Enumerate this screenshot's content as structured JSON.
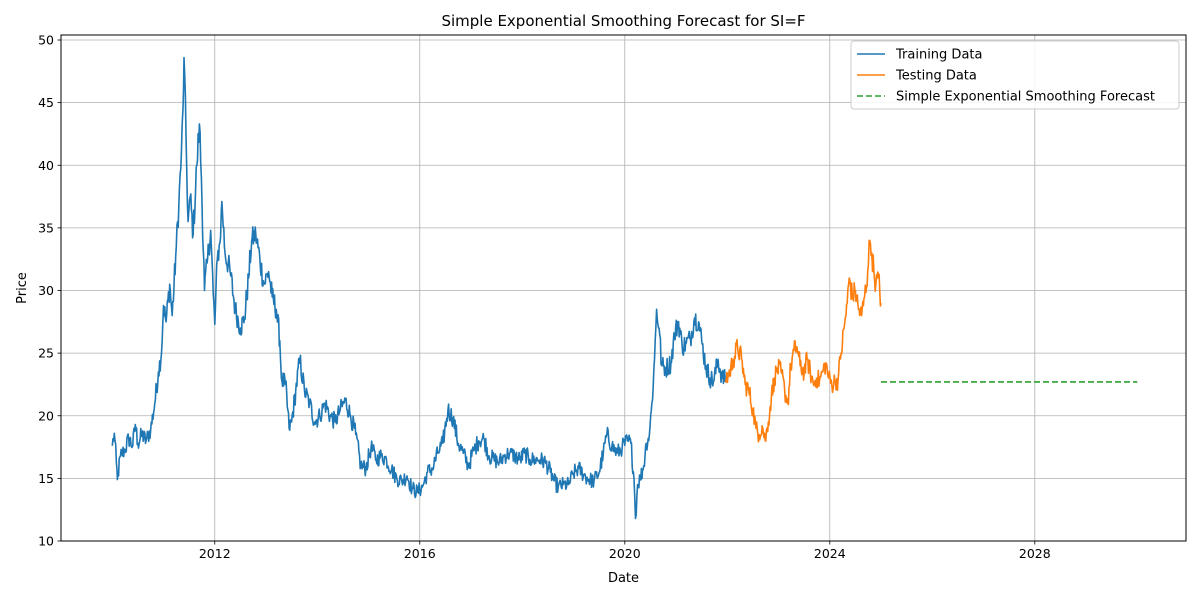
{
  "chart_data": {
    "type": "line",
    "title": "Simple Exponential Smoothing Forecast for SI=F",
    "xlabel": "Date",
    "ylabel": "Price",
    "xlim": [
      2009.0,
      2030.95
    ],
    "ylim": [
      10.0,
      50.4
    ],
    "x_ticks": [
      2012,
      2016,
      2020,
      2024,
      2028
    ],
    "x_tick_labels": [
      "2012",
      "2016",
      "2020",
      "2024",
      "2028"
    ],
    "y_ticks": [
      10,
      15,
      20,
      25,
      30,
      35,
      40,
      45,
      50
    ],
    "y_tick_labels": [
      "10",
      "15",
      "20",
      "25",
      "30",
      "35",
      "40",
      "45",
      "50"
    ],
    "grid": true,
    "legend_position": "top-right",
    "colors": {
      "training": "#1f77b4",
      "testing": "#ff7f0e",
      "forecast": "#2ca02c"
    },
    "series": [
      {
        "name": "Training Data",
        "style": "solid",
        "points": [
          [
            2010.0,
            17.6
          ],
          [
            2010.04,
            18.6
          ],
          [
            2010.08,
            16.2
          ],
          [
            2010.1,
            14.9
          ],
          [
            2010.16,
            16.8
          ],
          [
            2010.25,
            17.3
          ],
          [
            2010.32,
            18.2
          ],
          [
            2010.4,
            17.6
          ],
          [
            2010.45,
            19.3
          ],
          [
            2010.5,
            17.8
          ],
          [
            2010.58,
            18.5
          ],
          [
            2010.66,
            18.0
          ],
          [
            2010.75,
            18.9
          ],
          [
            2010.83,
            21.0
          ],
          [
            2010.9,
            23.5
          ],
          [
            2010.96,
            25.0
          ],
          [
            2011.0,
            28.8
          ],
          [
            2011.05,
            27.5
          ],
          [
            2011.12,
            30.5
          ],
          [
            2011.17,
            28.0
          ],
          [
            2011.25,
            33.5
          ],
          [
            2011.3,
            37.0
          ],
          [
            2011.35,
            41.0
          ],
          [
            2011.38,
            44.5
          ],
          [
            2011.4,
            48.6
          ],
          [
            2011.44,
            42.0
          ],
          [
            2011.48,
            35.5
          ],
          [
            2011.52,
            37.5
          ],
          [
            2011.58,
            34.5
          ],
          [
            2011.65,
            40.0
          ],
          [
            2011.7,
            43.3
          ],
          [
            2011.74,
            39.0
          ],
          [
            2011.8,
            30.0
          ],
          [
            2011.86,
            32.5
          ],
          [
            2011.92,
            34.8
          ],
          [
            2011.97,
            29.8
          ],
          [
            2012.0,
            27.3
          ],
          [
            2012.05,
            32.5
          ],
          [
            2012.1,
            33.8
          ],
          [
            2012.14,
            37.1
          ],
          [
            2012.2,
            33.0
          ],
          [
            2012.3,
            31.5
          ],
          [
            2012.4,
            28.5
          ],
          [
            2012.5,
            27.0
          ],
          [
            2012.58,
            27.8
          ],
          [
            2012.66,
            31.0
          ],
          [
            2012.72,
            34.0
          ],
          [
            2012.8,
            34.5
          ],
          [
            2012.88,
            32.5
          ],
          [
            2012.96,
            30.5
          ],
          [
            2013.05,
            31.5
          ],
          [
            2013.12,
            29.5
          ],
          [
            2013.2,
            28.5
          ],
          [
            2013.27,
            26.0
          ],
          [
            2013.3,
            23.0
          ],
          [
            2013.38,
            22.5
          ],
          [
            2013.45,
            19.0
          ],
          [
            2013.5,
            19.5
          ],
          [
            2013.58,
            22.0
          ],
          [
            2013.66,
            24.5
          ],
          [
            2013.75,
            22.0
          ],
          [
            2013.85,
            21.0
          ],
          [
            2013.95,
            19.5
          ],
          [
            2014.05,
            20.0
          ],
          [
            2014.15,
            21.0
          ],
          [
            2014.25,
            20.0
          ],
          [
            2014.35,
            19.5
          ],
          [
            2014.45,
            20.5
          ],
          [
            2014.55,
            21.2
          ],
          [
            2014.65,
            20.0
          ],
          [
            2014.75,
            18.5
          ],
          [
            2014.85,
            16.0
          ],
          [
            2014.95,
            15.8
          ],
          [
            2015.05,
            17.5
          ],
          [
            2015.15,
            16.5
          ],
          [
            2015.25,
            16.8
          ],
          [
            2015.35,
            16.5
          ],
          [
            2015.45,
            15.7
          ],
          [
            2015.55,
            15.0
          ],
          [
            2015.65,
            14.8
          ],
          [
            2015.75,
            15.2
          ],
          [
            2015.85,
            14.2
          ],
          [
            2015.95,
            13.9
          ],
          [
            2016.05,
            14.3
          ],
          [
            2016.15,
            15.5
          ],
          [
            2016.25,
            15.8
          ],
          [
            2016.35,
            17.0
          ],
          [
            2016.45,
            17.8
          ],
          [
            2016.55,
            20.5
          ],
          [
            2016.65,
            19.8
          ],
          [
            2016.75,
            17.8
          ],
          [
            2016.85,
            17.0
          ],
          [
            2016.95,
            16.0
          ],
          [
            2017.05,
            17.2
          ],
          [
            2017.15,
            18.0
          ],
          [
            2017.25,
            18.2
          ],
          [
            2017.35,
            16.8
          ],
          [
            2017.45,
            16.5
          ],
          [
            2017.55,
            16.3
          ],
          [
            2017.65,
            16.8
          ],
          [
            2017.75,
            17.0
          ],
          [
            2017.85,
            16.8
          ],
          [
            2017.95,
            16.5
          ],
          [
            2018.05,
            17.0
          ],
          [
            2018.15,
            16.5
          ],
          [
            2018.25,
            16.5
          ],
          [
            2018.35,
            16.5
          ],
          [
            2018.45,
            16.3
          ],
          [
            2018.55,
            15.5
          ],
          [
            2018.62,
            14.8
          ],
          [
            2018.7,
            14.3
          ],
          [
            2018.8,
            14.5
          ],
          [
            2018.9,
            14.5
          ],
          [
            2019.0,
            15.4
          ],
          [
            2019.1,
            15.8
          ],
          [
            2019.2,
            15.3
          ],
          [
            2019.3,
            14.9
          ],
          [
            2019.4,
            14.8
          ],
          [
            2019.5,
            15.5
          ],
          [
            2019.58,
            17.0
          ],
          [
            2019.65,
            18.5
          ],
          [
            2019.75,
            17.6
          ],
          [
            2019.85,
            17.0
          ],
          [
            2019.95,
            17.5
          ],
          [
            2020.05,
            18.0
          ],
          [
            2020.12,
            17.8
          ],
          [
            2020.18,
            15.0
          ],
          [
            2020.21,
            11.8
          ],
          [
            2020.25,
            14.5
          ],
          [
            2020.3,
            15.0
          ],
          [
            2020.37,
            16.0
          ],
          [
            2020.42,
            17.8
          ],
          [
            2020.48,
            18.5
          ],
          [
            2020.53,
            21.0
          ],
          [
            2020.58,
            24.5
          ],
          [
            2020.62,
            28.5
          ],
          [
            2020.67,
            27.0
          ],
          [
            2020.72,
            24.0
          ],
          [
            2020.8,
            23.8
          ],
          [
            2020.9,
            24.2
          ],
          [
            2020.97,
            26.5
          ],
          [
            2021.05,
            27.5
          ],
          [
            2021.12,
            25.5
          ],
          [
            2021.2,
            25.8
          ],
          [
            2021.28,
            26.2
          ],
          [
            2021.36,
            27.8
          ],
          [
            2021.44,
            27.5
          ],
          [
            2021.5,
            26.0
          ],
          [
            2021.58,
            24.0
          ],
          [
            2021.66,
            23.0
          ],
          [
            2021.74,
            22.8
          ],
          [
            2021.82,
            24.5
          ],
          [
            2021.9,
            23.0
          ],
          [
            2021.97,
            22.9
          ]
        ]
      },
      {
        "name": "Testing Data",
        "style": "solid",
        "points": [
          [
            2021.97,
            22.9
          ],
          [
            2022.05,
            23.5
          ],
          [
            2022.12,
            24.5
          ],
          [
            2022.2,
            25.5
          ],
          [
            2022.28,
            24.5
          ],
          [
            2022.35,
            22.5
          ],
          [
            2022.42,
            22.0
          ],
          [
            2022.5,
            20.5
          ],
          [
            2022.56,
            19.0
          ],
          [
            2022.62,
            18.5
          ],
          [
            2022.68,
            19.2
          ],
          [
            2022.74,
            18.0
          ],
          [
            2022.8,
            19.5
          ],
          [
            2022.86,
            21.5
          ],
          [
            2022.92,
            23.0
          ],
          [
            2022.98,
            23.8
          ],
          [
            2023.05,
            23.5
          ],
          [
            2023.12,
            22.0
          ],
          [
            2023.18,
            21.0
          ],
          [
            2023.24,
            24.0
          ],
          [
            2023.3,
            25.2
          ],
          [
            2023.36,
            25.5
          ],
          [
            2023.42,
            24.0
          ],
          [
            2023.5,
            23.5
          ],
          [
            2023.56,
            24.5
          ],
          [
            2023.62,
            23.5
          ],
          [
            2023.68,
            22.5
          ],
          [
            2023.74,
            23.0
          ],
          [
            2023.8,
            22.8
          ],
          [
            2023.86,
            23.5
          ],
          [
            2023.92,
            24.2
          ],
          [
            2023.98,
            23.0
          ],
          [
            2024.04,
            22.5
          ],
          [
            2024.1,
            22.8
          ],
          [
            2024.16,
            22.8
          ],
          [
            2024.22,
            25.0
          ],
          [
            2024.28,
            27.0
          ],
          [
            2024.34,
            29.0
          ],
          [
            2024.38,
            31.0
          ],
          [
            2024.44,
            29.5
          ],
          [
            2024.5,
            30.0
          ],
          [
            2024.56,
            28.5
          ],
          [
            2024.62,
            28.0
          ],
          [
            2024.68,
            29.5
          ],
          [
            2024.74,
            31.5
          ],
          [
            2024.78,
            34.0
          ],
          [
            2024.82,
            33.0
          ],
          [
            2024.86,
            31.5
          ],
          [
            2024.9,
            30.5
          ],
          [
            2024.95,
            31.0
          ],
          [
            2025.0,
            29.0
          ]
        ]
      },
      {
        "name": "Simple Exponential Smoothing Forecast",
        "style": "dashed",
        "points": [
          [
            2025.0,
            22.7
          ],
          [
            2030.0,
            22.7
          ]
        ]
      }
    ]
  }
}
